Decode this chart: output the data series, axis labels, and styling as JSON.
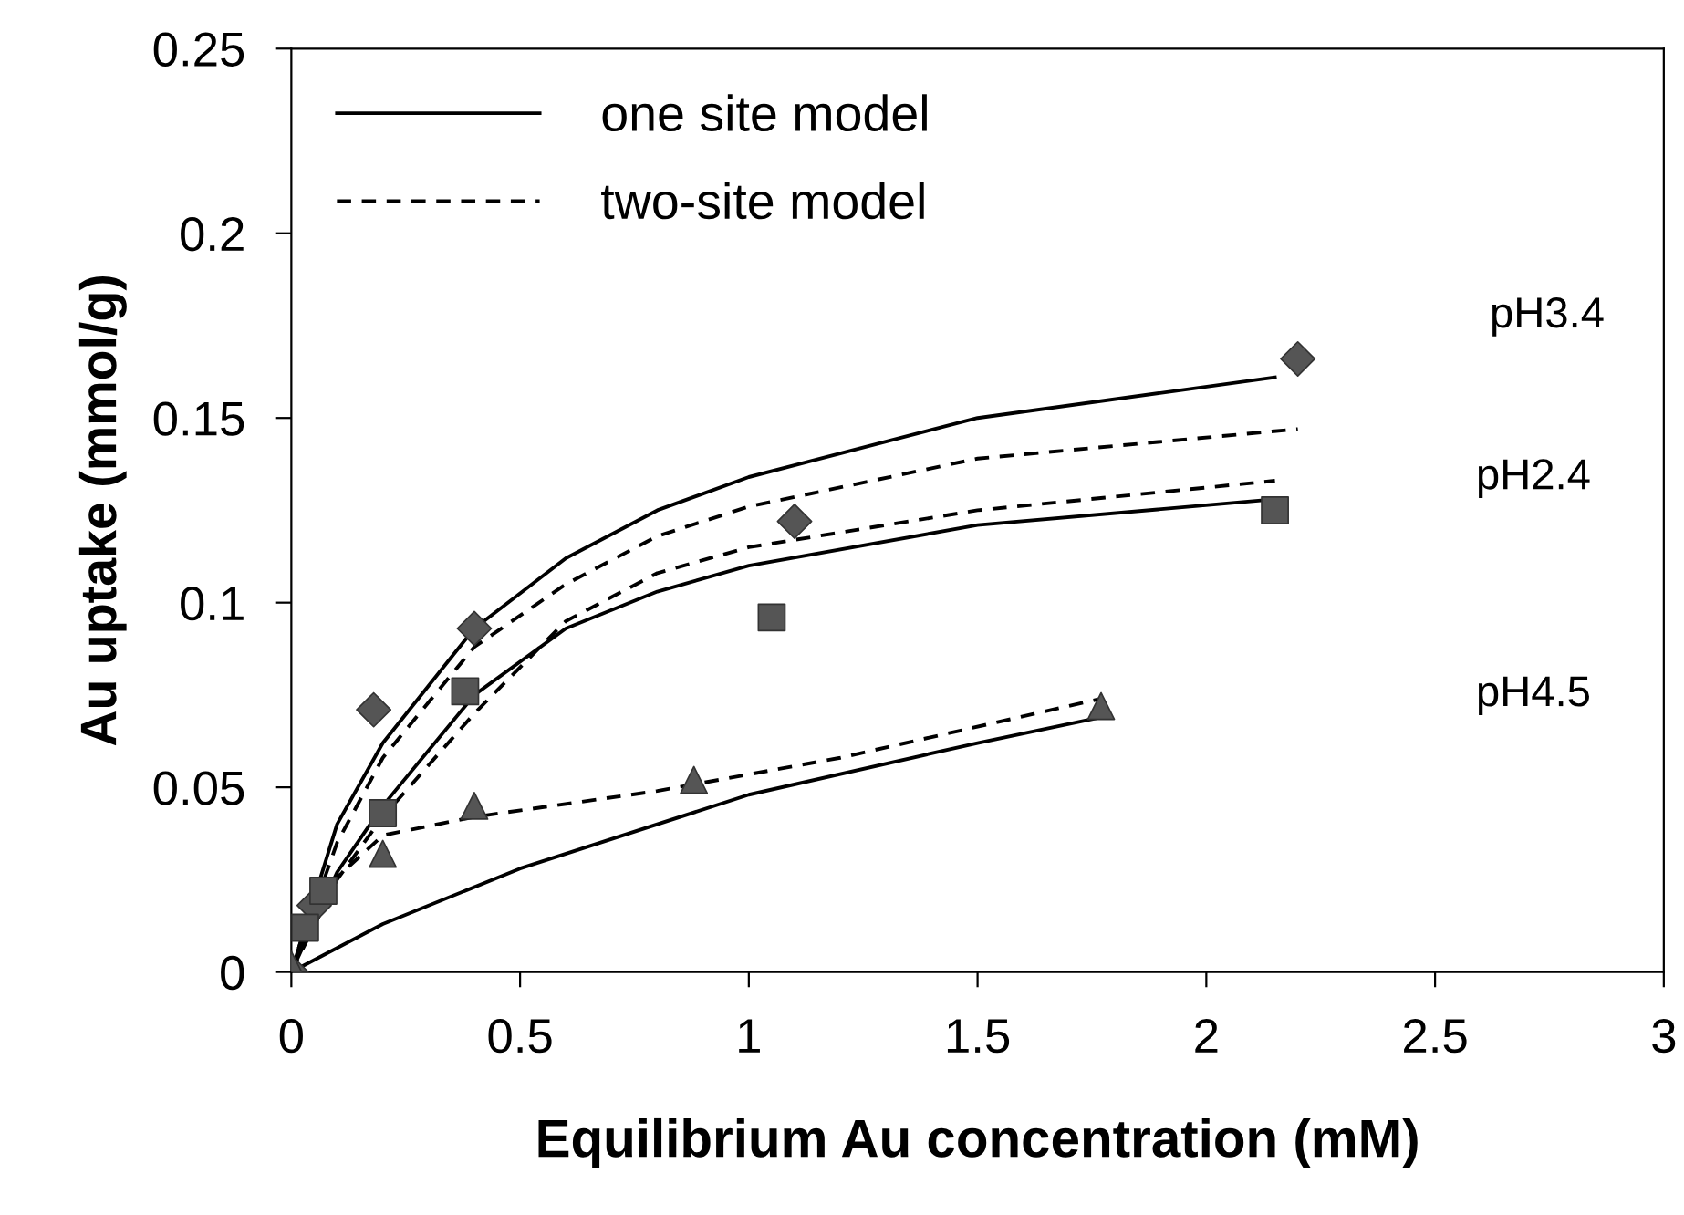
{
  "chart_data": {
    "type": "scatter",
    "xlabel": "Equilibrium Au concentration (mM)",
    "ylabel": "Au uptake (mmol/g)",
    "xlim": [
      0,
      3
    ],
    "xticks": [
      0,
      0.5,
      1,
      1.5,
      2,
      2.5,
      3
    ],
    "ylim": [
      0,
      0.25
    ],
    "yticks": [
      0,
      0.05,
      0.1,
      0.15,
      0.2,
      0.25
    ],
    "grid": false,
    "legend": "top left",
    "series": [
      {
        "type": "scatter",
        "marker": "diamond",
        "color": "#555555",
        "x": [
          0,
          0.02,
          0.05,
          0.18,
          0.4,
          1.1,
          2.2
        ],
        "values": [
          0,
          null,
          0.018,
          0.071,
          0.093,
          0.122,
          0.166
        ]
      },
      {
        "type": "scatter",
        "marker": "square",
        "color": "#555555",
        "x": [
          0.03,
          0.07,
          0.2,
          0.38,
          1.05,
          2.15
        ],
        "values": [
          0.012,
          0.022,
          0.043,
          0.076,
          0.096,
          0.125
        ]
      },
      {
        "type": "scatter",
        "marker": "triangle",
        "color": "#555555",
        "x": [
          0,
          0.2,
          0.4,
          0.88,
          1.77
        ],
        "values": [
          0.002,
          0.032,
          0.045,
          0.052,
          0.072
        ]
      },
      {
        "type": "line",
        "name": "one site model",
        "line_style": "solid",
        "color": "#000000",
        "x": [
          0,
          0.1,
          0.2,
          0.4,
          0.6,
          0.8,
          1,
          1.5,
          2.15
        ],
        "values": [
          0,
          0.04,
          0.062,
          0.093,
          0.112,
          0.125,
          0.134,
          0.15,
          0.161
        ]
      },
      {
        "type": "line",
        "name": "two-site model",
        "line_style": "dashed",
        "color": "#000000",
        "x": [
          0,
          0.1,
          0.2,
          0.4,
          0.6,
          0.8,
          1,
          1.5,
          2.2
        ],
        "values": [
          0,
          0.035,
          0.058,
          0.088,
          0.105,
          0.118,
          0.126,
          0.139,
          0.147
        ]
      },
      {
        "type": "line",
        "line_style": "solid",
        "color": "#000000",
        "x": [
          0,
          0.1,
          0.2,
          0.4,
          0.6,
          0.8,
          1,
          1.5,
          2.15
        ],
        "values": [
          0,
          0.027,
          0.045,
          0.075,
          0.093,
          0.103,
          0.11,
          0.121,
          0.128
        ]
      },
      {
        "type": "line",
        "line_style": "dashed",
        "color": "#000000",
        "x": [
          0,
          0.1,
          0.2,
          0.4,
          0.6,
          0.8,
          1,
          1.5,
          2.15
        ],
        "values": [
          0,
          0.025,
          0.042,
          0.07,
          0.095,
          0.108,
          0.115,
          0.125,
          0.133
        ]
      },
      {
        "type": "line",
        "line_style": "solid",
        "color": "#000000",
        "x": [
          0,
          0.2,
          0.5,
          1,
          1.5,
          1.77
        ],
        "values": [
          0,
          0.013,
          0.028,
          0.048,
          0.062,
          0.069
        ]
      },
      {
        "type": "line",
        "line_style": "dashed",
        "color": "#000000",
        "x": [
          0,
          0.05,
          0.2,
          0.4,
          0.8,
          1.2,
          1.77
        ],
        "values": [
          0,
          0.02,
          0.037,
          0.042,
          0.049,
          0.058,
          0.074
        ]
      }
    ],
    "annotations": [
      "pH3.4",
      "pH2.4",
      "pH4.5"
    ]
  }
}
